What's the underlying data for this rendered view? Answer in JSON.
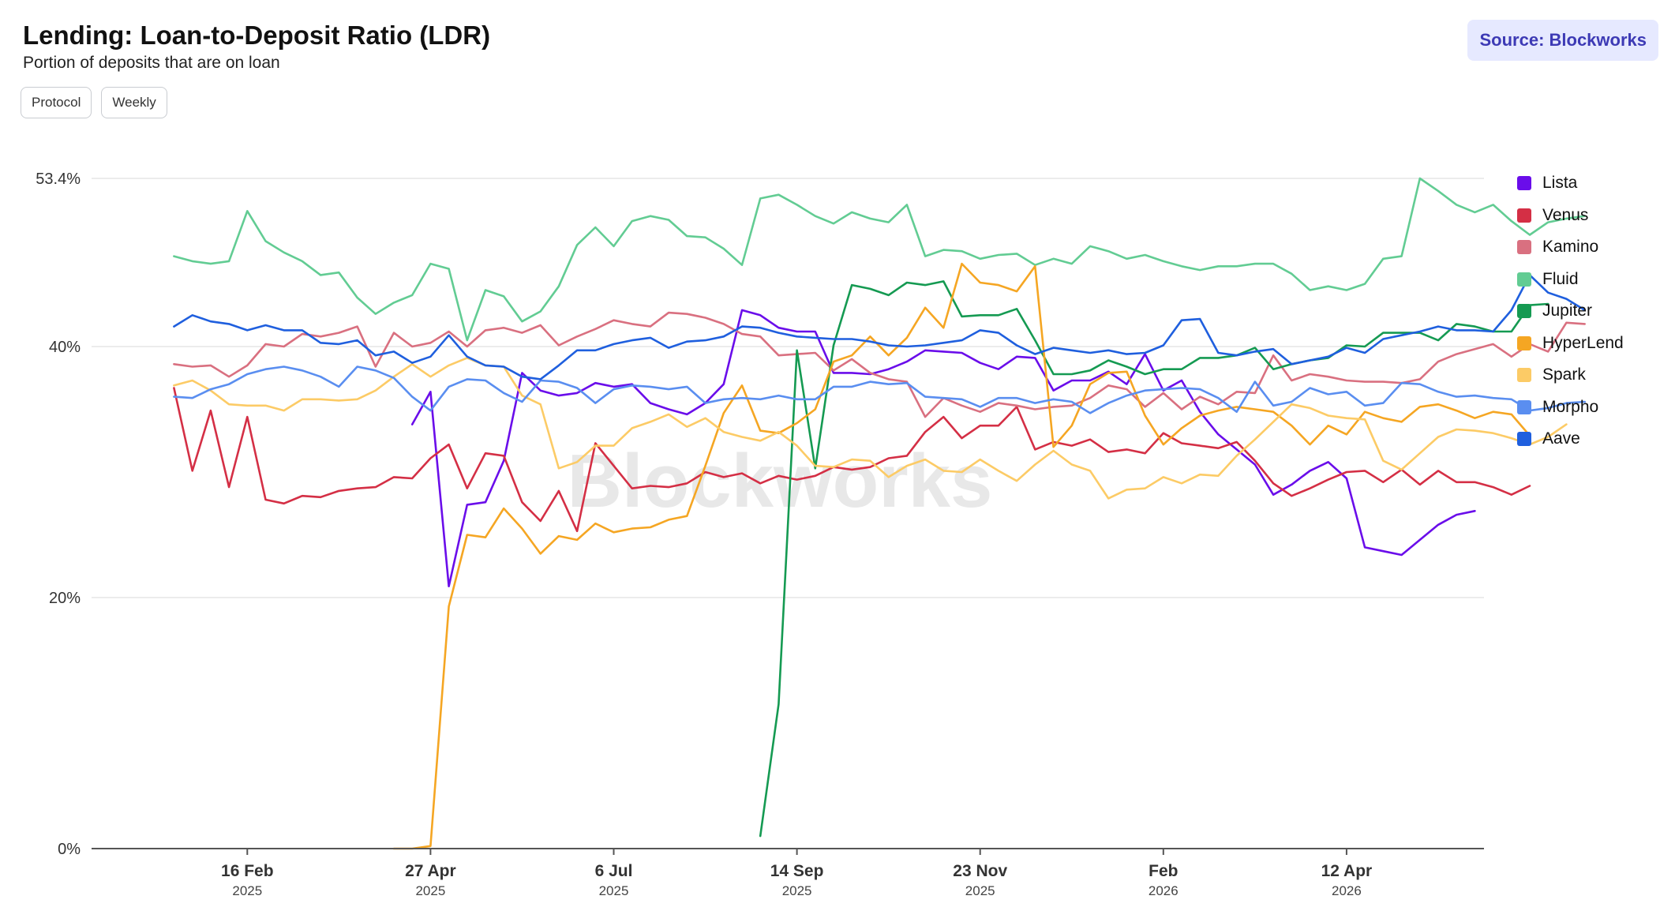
{
  "header": {
    "title": "Lending: Loan-to-Deposit Ratio (LDR)",
    "subtitle": "Portion of deposits that are on loan",
    "source_label": "Source: Blockworks"
  },
  "filters": {
    "protocol_label": "Protocol",
    "interval_label": "Weekly"
  },
  "watermark": "Blockworks",
  "chart_data": {
    "type": "line",
    "ylim": [
      0,
      53.4
    ],
    "y_ticks": [
      {
        "value": 0,
        "label": "0%"
      },
      {
        "value": 20,
        "label": "20%"
      },
      {
        "value": 40,
        "label": "40%"
      },
      {
        "value": 53.4,
        "label": "53.4%"
      }
    ],
    "x_range": [
      -4.5,
      71.5
    ],
    "x_ticks": [
      {
        "index": 4,
        "label": "16 Feb",
        "year": "2025"
      },
      {
        "index": 14,
        "label": "27 Apr",
        "year": "2025"
      },
      {
        "index": 24,
        "label": "6 Jul",
        "year": "2025"
      },
      {
        "index": 34,
        "label": "14 Sep",
        "year": "2025"
      },
      {
        "index": 44,
        "label": "23 Nov",
        "year": "2025"
      },
      {
        "index": 54,
        "label": "Feb",
        "year": "2026"
      },
      {
        "index": 64,
        "label": "12 Apr",
        "year": "2026"
      }
    ],
    "legend_position": "right",
    "grid": true,
    "series": [
      {
        "name": "Lista",
        "color": "#6a0dea",
        "start": 13,
        "values": [
          33.8,
          36.4,
          20.9,
          27.4,
          27.6,
          30.9,
          37.9,
          36.5,
          36.1,
          36.3,
          37.1,
          36.8,
          37.0,
          35.5,
          35.0,
          34.6,
          35.5,
          37.0,
          42.9,
          42.5,
          41.5,
          41.2,
          41.2,
          37.9,
          37.9,
          37.8,
          38.2,
          38.8,
          39.7,
          39.6,
          39.5,
          38.7,
          38.2,
          39.2,
          39.1,
          36.5,
          37.3,
          37.3,
          38.0,
          37.0,
          39.4,
          36.5,
          37.3,
          34.8,
          33.0,
          31.8,
          30.6,
          28.2,
          29.0,
          30.1,
          30.8,
          29.5,
          24.0,
          23.7,
          23.4,
          24.6,
          25.8,
          26.6,
          26.9
        ]
      },
      {
        "name": "Venus",
        "color": "#d42f45",
        "start": 0,
        "values": [
          36.7,
          30.1,
          34.9,
          28.8,
          34.4,
          27.8,
          27.5,
          28.1,
          28.0,
          28.5,
          28.7,
          28.8,
          29.6,
          29.5,
          31.1,
          32.2,
          28.7,
          31.5,
          31.3,
          27.6,
          26.1,
          28.5,
          25.3,
          32.3,
          30.5,
          28.7,
          28.9,
          28.8,
          29.1,
          30.0,
          29.6,
          29.9,
          29.1,
          29.7,
          29.4,
          29.7,
          30.4,
          30.2,
          30.4,
          31.1,
          31.3,
          33.2,
          34.4,
          32.7,
          33.7,
          33.7,
          35.2,
          31.8,
          32.4,
          32.1,
          32.6,
          31.6,
          31.8,
          31.5,
          33.1,
          32.3,
          32.1,
          31.9,
          32.4,
          30.9,
          29.1,
          28.1,
          28.7,
          29.4,
          30.0,
          30.1,
          29.2,
          30.2,
          29.0,
          30.1,
          29.2,
          29.2,
          28.8,
          28.2,
          28.9
        ]
      },
      {
        "name": "Kamino",
        "color": "#d97080",
        "start": 0,
        "values": [
          38.6,
          38.4,
          38.5,
          37.6,
          38.5,
          40.2,
          40.0,
          41.0,
          40.8,
          41.1,
          41.6,
          38.4,
          41.1,
          40.0,
          40.3,
          41.2,
          40.0,
          41.3,
          41.5,
          41.1,
          41.7,
          40.1,
          40.8,
          41.4,
          42.1,
          41.8,
          41.6,
          42.7,
          42.6,
          42.3,
          41.8,
          41.0,
          40.8,
          39.3,
          39.4,
          39.5,
          38.1,
          39.0,
          37.9,
          37.4,
          37.2,
          34.4,
          35.9,
          35.3,
          34.8,
          35.5,
          35.3,
          35.0,
          35.2,
          35.3,
          35.9,
          36.9,
          36.6,
          35.2,
          36.3,
          35.0,
          36.0,
          35.4,
          36.4,
          36.3,
          39.3,
          37.3,
          37.8,
          37.6,
          37.3,
          37.2,
          37.2,
          37.1,
          37.4,
          38.8,
          39.4,
          39.8,
          40.2,
          39.2,
          40.2,
          39.6,
          41.9,
          41.8
        ]
      },
      {
        "name": "Fluid",
        "color": "#62cc93",
        "start": 0,
        "values": [
          47.2,
          46.8,
          46.6,
          46.8,
          50.8,
          48.4,
          47.5,
          46.8,
          45.7,
          45.9,
          43.9,
          42.6,
          43.5,
          44.1,
          46.6,
          46.2,
          40.5,
          44.5,
          44.0,
          42.0,
          42.8,
          44.8,
          48.1,
          49.5,
          48.0,
          50.0,
          50.4,
          50.1,
          48.8,
          48.7,
          47.8,
          46.5,
          51.8,
          52.1,
          51.3,
          50.4,
          49.8,
          50.7,
          50.2,
          49.9,
          51.3,
          47.2,
          47.7,
          47.6,
          47.0,
          47.3,
          47.4,
          46.5,
          47.0,
          46.6,
          48.0,
          47.6,
          47.0,
          47.3,
          46.8,
          46.4,
          46.1,
          46.4,
          46.4,
          46.6,
          46.6,
          45.8,
          44.5,
          44.8,
          44.5,
          45.0,
          47.0,
          47.2,
          53.4,
          52.4,
          51.3,
          50.7,
          51.3,
          50.0,
          48.9,
          49.9,
          50.2,
          50.4
        ]
      },
      {
        "name": "Jupiter",
        "color": "#159a52",
        "start": 32,
        "values": [
          1.0,
          11.5,
          39.7,
          30.3,
          40.1,
          44.9,
          44.6,
          44.1,
          45.1,
          44.9,
          45.2,
          42.4,
          42.5,
          42.5,
          43.0,
          40.5,
          37.8,
          37.8,
          38.1,
          38.9,
          38.4,
          37.8,
          38.2,
          38.2,
          39.1,
          39.1,
          39.3,
          39.9,
          38.2,
          38.6,
          38.9,
          39.1,
          40.1,
          40.0,
          41.1,
          41.1,
          41.1,
          40.5,
          41.8,
          41.6,
          41.2,
          41.2,
          43.3,
          43.4
        ]
      },
      {
        "name": "HyperLend",
        "color": "#f5a623",
        "start": 12,
        "values": [
          0.0,
          0.0,
          0.2,
          19.3,
          25.0,
          24.8,
          27.1,
          25.5,
          23.5,
          24.9,
          24.6,
          25.9,
          25.2,
          25.5,
          25.6,
          26.2,
          26.5,
          30.5,
          34.7,
          36.9,
          33.3,
          33.1,
          33.9,
          35.0,
          38.8,
          39.3,
          40.8,
          39.3,
          40.7,
          43.1,
          41.5,
          46.6,
          45.1,
          44.9,
          44.4,
          46.4,
          32.0,
          33.7,
          37.0,
          37.9,
          38.0,
          34.5,
          32.2,
          33.5,
          34.5,
          34.9,
          35.2,
          35.0,
          34.8,
          33.7,
          32.2,
          33.7,
          33.0,
          34.8,
          34.3,
          34.0,
          35.2,
          35.4,
          34.9,
          34.3,
          34.8,
          34.6,
          32.9
        ]
      },
      {
        "name": "Spark",
        "color": "#fccb66",
        "start": 0,
        "values": [
          36.9,
          37.3,
          36.5,
          35.4,
          35.3,
          35.3,
          34.9,
          35.8,
          35.8,
          35.7,
          35.8,
          36.5,
          37.6,
          38.6,
          37.6,
          38.5,
          39.1,
          38.5,
          38.4,
          36.1,
          35.4,
          30.3,
          30.8,
          32.1,
          32.1,
          33.5,
          34.0,
          34.6,
          33.6,
          34.3,
          33.2,
          32.8,
          32.5,
          33.2,
          32.1,
          30.5,
          30.4,
          31.0,
          30.9,
          29.6,
          30.5,
          31.0,
          30.1,
          30.0,
          31.0,
          30.1,
          29.3,
          30.6,
          31.7,
          30.6,
          30.1,
          27.9,
          28.6,
          28.7,
          29.6,
          29.1,
          29.8,
          29.7,
          31.3,
          32.6,
          34.0,
          35.4,
          35.1,
          34.5,
          34.3,
          34.2,
          30.9,
          30.2,
          31.5,
          32.8,
          33.4,
          33.3,
          33.1,
          32.7,
          32.2,
          32.8,
          33.8
        ]
      },
      {
        "name": "Morpho",
        "color": "#5a8ef0",
        "start": 0,
        "values": [
          36.0,
          35.9,
          36.6,
          37.0,
          37.8,
          38.2,
          38.4,
          38.1,
          37.6,
          36.8,
          38.4,
          38.1,
          37.5,
          36.0,
          34.9,
          36.8,
          37.4,
          37.3,
          36.3,
          35.6,
          37.3,
          37.2,
          36.7,
          35.5,
          36.6,
          36.9,
          36.8,
          36.6,
          36.8,
          35.5,
          35.8,
          35.9,
          35.8,
          36.1,
          35.8,
          35.8,
          36.8,
          36.8,
          37.2,
          37.0,
          37.1,
          36.0,
          35.9,
          35.8,
          35.2,
          35.9,
          35.9,
          35.5,
          35.8,
          35.6,
          34.7,
          35.5,
          36.1,
          36.5,
          36.6,
          36.7,
          36.6,
          35.9,
          34.8,
          37.2,
          35.3,
          35.6,
          36.7,
          36.2,
          36.4,
          35.3,
          35.5,
          37.1,
          37.0,
          36.4,
          36.0,
          36.1,
          35.9,
          35.8,
          34.9,
          35.1,
          35.5,
          35.6
        ]
      },
      {
        "name": "Aave",
        "color": "#1f5fde",
        "start": 0,
        "values": [
          41.6,
          42.5,
          42.0,
          41.8,
          41.3,
          41.7,
          41.3,
          41.3,
          40.3,
          40.2,
          40.5,
          39.3,
          39.6,
          38.7,
          39.2,
          40.9,
          39.2,
          38.5,
          38.4,
          37.6,
          37.4,
          38.5,
          39.7,
          39.7,
          40.2,
          40.5,
          40.7,
          39.9,
          40.4,
          40.5,
          40.8,
          41.6,
          41.5,
          41.1,
          40.8,
          40.7,
          40.6,
          40.6,
          40.4,
          40.1,
          40.0,
          40.1,
          40.3,
          40.5,
          41.3,
          41.1,
          40.1,
          39.4,
          39.9,
          39.7,
          39.5,
          39.7,
          39.4,
          39.5,
          40.1,
          42.1,
          42.2,
          39.5,
          39.3,
          39.6,
          39.8,
          38.6,
          38.9,
          39.2,
          39.9,
          39.5,
          40.6,
          40.9,
          41.2,
          41.6,
          41.3,
          41.3,
          41.2,
          42.9,
          45.7,
          44.3,
          43.8,
          42.9
        ]
      }
    ]
  }
}
